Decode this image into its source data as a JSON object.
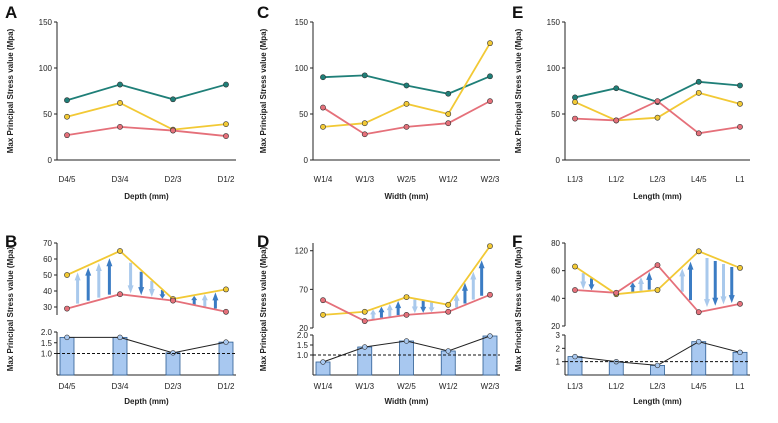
{
  "colors": {
    "teal": "#1f7f78",
    "yellow": "#f2c935",
    "pink": "#e5707a",
    "bar_fill": "#a8c8f0",
    "bar_stroke": "#2d5d93",
    "arrow_light": "#a9c9ec",
    "arrow_dark": "#3b7cc4"
  },
  "y_label": "Max Principal Stress value (Mpa)",
  "chart_data": [
    {
      "panel": "A",
      "type": "line",
      "categories": [
        "D4/5",
        "D3/4",
        "D2/3",
        "D1/2"
      ],
      "xlabel": "Depth (mm)",
      "ylabel": "Max Principal Stress value (Mpa)",
      "ylim": [
        0,
        150
      ],
      "yticks": [
        "0",
        "50",
        "100",
        "150"
      ],
      "series": [
        {
          "name": "teal",
          "values": [
            65,
            82,
            66,
            82
          ]
        },
        {
          "name": "yellow",
          "values": [
            47,
            62,
            33,
            39
          ]
        },
        {
          "name": "pink",
          "values": [
            27,
            36,
            32,
            26
          ]
        }
      ]
    },
    {
      "panel": "B",
      "type": "line+bar",
      "categories": [
        "D4/5",
        "D3/4",
        "D2/3",
        "D1/2"
      ],
      "xlabel": "Depth (mm)",
      "ylabel": "Max Principal Stress value (Mpa)",
      "top_ylim": [
        25,
        70
      ],
      "top_yticks": [
        "30",
        "40",
        "50",
        "60",
        "70"
      ],
      "series": [
        {
          "name": "yellow",
          "values": [
            50,
            65,
            35,
            41
          ]
        },
        {
          "name": "pink",
          "values": [
            29,
            38,
            34,
            27
          ]
        }
      ],
      "ratio_ylim": [
        0,
        2
      ],
      "ratio_yticks": [
        "1.0",
        "1.5",
        "2.0"
      ],
      "ratio_values": [
        1.75,
        1.75,
        1.03,
        1.53
      ],
      "reference_line": 1.0
    },
    {
      "panel": "C",
      "type": "line",
      "categories": [
        "W1/4",
        "W1/3",
        "W2/5",
        "W1/2",
        "W2/3"
      ],
      "xlabel": "Width (mm)",
      "ylabel": "Max Principal Stress value (Mpa)",
      "ylim": [
        0,
        150
      ],
      "yticks": [
        "0",
        "50",
        "100",
        "150"
      ],
      "series": [
        {
          "name": "teal",
          "values": [
            90,
            92,
            81,
            72,
            91
          ]
        },
        {
          "name": "yellow",
          "values": [
            36,
            40,
            61,
            50,
            127
          ]
        },
        {
          "name": "pink",
          "values": [
            57,
            28,
            36,
            40,
            64
          ]
        }
      ]
    },
    {
      "panel": "D",
      "type": "line+bar",
      "categories": [
        "W1/4",
        "W1/3",
        "W2/5",
        "W1/2",
        "W2/3"
      ],
      "xlabel": "Width (mm)",
      "ylabel": "Max Principal Stress value (Mpa)",
      "top_ylim": [
        20,
        130
      ],
      "top_yticks": [
        "20",
        "70",
        "120"
      ],
      "series": [
        {
          "name": "yellow",
          "values": [
            37,
            41,
            60,
            50,
            126
          ]
        },
        {
          "name": "pink",
          "values": [
            56,
            29,
            37,
            41,
            63
          ]
        }
      ],
      "ratio_ylim": [
        0,
        2
      ],
      "ratio_yticks": [
        "1.0",
        "1.5",
        "2.0"
      ],
      "ratio_values": [
        0.65,
        1.4,
        1.7,
        1.2,
        1.95
      ],
      "reference_line": 1.0
    },
    {
      "panel": "E",
      "type": "line",
      "categories": [
        "L1/3",
        "L1/2",
        "L2/3",
        "L4/5",
        "L1"
      ],
      "xlabel": "Length (mm)",
      "ylabel": "Max Principal Stress value (Mpa)",
      "ylim": [
        0,
        150
      ],
      "yticks": [
        "0",
        "50",
        "100",
        "150"
      ],
      "series": [
        {
          "name": "teal",
          "values": [
            68,
            78,
            63,
            85,
            81
          ]
        },
        {
          "name": "yellow",
          "values": [
            63,
            43,
            46,
            73,
            61
          ]
        },
        {
          "name": "pink",
          "values": [
            45,
            43,
            64,
            29,
            36
          ]
        }
      ]
    },
    {
      "panel": "F",
      "type": "line+bar",
      "categories": [
        "L1/3",
        "L1/2",
        "L2/3",
        "L4/5",
        "L1"
      ],
      "xlabel": "Length (mm)",
      "ylabel": "Max Principal Stress value (Mpa)",
      "top_ylim": [
        20,
        80
      ],
      "top_yticks": [
        "20",
        "40",
        "60",
        "80"
      ],
      "series": [
        {
          "name": "yellow",
          "values": [
            63,
            43,
            46,
            74,
            62
          ]
        },
        {
          "name": "pink",
          "values": [
            46,
            44,
            64,
            30,
            36
          ]
        }
      ],
      "ratio_ylim": [
        0,
        3
      ],
      "ratio_yticks": [
        "1",
        "2",
        "3"
      ],
      "ratio_values": [
        1.38,
        1.0,
        0.72,
        2.5,
        1.7
      ],
      "reference_line": 1.0
    }
  ]
}
